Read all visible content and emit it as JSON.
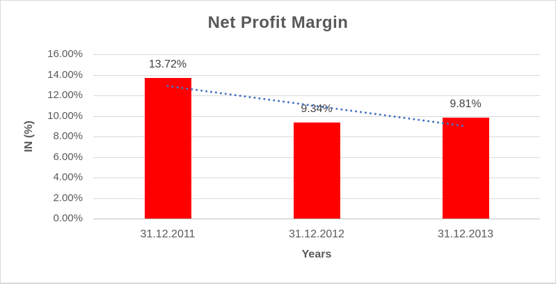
{
  "chart_data": {
    "type": "bar",
    "title": "Net Profit Margin",
    "xlabel": "Years",
    "ylabel": "IN (%)",
    "categories": [
      "31.12.2011",
      "31.12.2012",
      "31.12.2013"
    ],
    "values": [
      13.72,
      9.34,
      9.81
    ],
    "data_labels": [
      "13.72%",
      "9.34%",
      "9.81%"
    ],
    "ylim": [
      0,
      16
    ],
    "yticks": [
      {
        "value": 0,
        "label": "0.00%"
      },
      {
        "value": 2,
        "label": "2.00%"
      },
      {
        "value": 4,
        "label": "4.00%"
      },
      {
        "value": 6,
        "label": "6.00%"
      },
      {
        "value": 8,
        "label": "8.00%"
      },
      {
        "value": 10,
        "label": "10.00%"
      },
      {
        "value": 12,
        "label": "12.00%"
      },
      {
        "value": 14,
        "label": "14.00%"
      },
      {
        "value": 16,
        "label": "16.00%"
      }
    ],
    "grid": true,
    "legend": "none",
    "bar_color": "#FF0000",
    "trendline": {
      "type": "linear",
      "style": "dotted",
      "color": "#4472C4",
      "start_value": 12.91,
      "end_value": 9.0
    }
  },
  "colors": {
    "title_text": "#595959",
    "axis_text": "#595959",
    "data_label_text": "#404040",
    "gridline": "#D9D9D9",
    "axis_line": "#BFBFBF",
    "border": "#D9D9D9",
    "background": "#FFFFFF",
    "bar": "#FF0000",
    "trendline": "#4472C4"
  }
}
